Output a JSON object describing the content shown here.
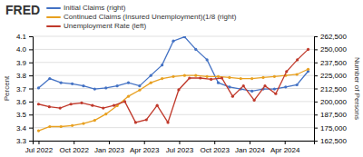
{
  "chart_data": {
    "type": "line",
    "title": "FRED",
    "y_label": "Percent",
    "y2_label": "Number of Persons",
    "grid": true,
    "legend": "top-left",
    "marker": "circle",
    "xlim": [
      -0.5,
      23.5
    ],
    "xticks": [
      {
        "value": 0,
        "label": "Jul 2022"
      },
      {
        "value": 3,
        "label": "Oct 2022"
      },
      {
        "value": 6,
        "label": "Jan 2023"
      },
      {
        "value": 9,
        "label": "Apr 2023"
      },
      {
        "value": 12,
        "label": "Jul 2023"
      },
      {
        "value": 15,
        "label": "Oct 2023"
      },
      {
        "value": 18,
        "label": "Jan 2024"
      },
      {
        "value": 21,
        "label": "Apr 2024"
      }
    ],
    "ylim": [
      3.3,
      4.1
    ],
    "yticks": [
      3.3,
      3.4,
      3.5,
      3.6,
      3.7,
      3.8,
      3.9,
      {
        "value": 4.0,
        "label": "4.0"
      },
      4.1
    ],
    "y2lim": [
      162500,
      262500
    ],
    "y2ticks": [
      {
        "value": 162500,
        "label": "162,500"
      },
      {
        "value": 175000,
        "label": "175,000"
      },
      {
        "value": 187500,
        "label": "187,500"
      },
      {
        "value": 200000,
        "label": "200,000"
      },
      {
        "value": 212500,
        "label": "212,500"
      },
      {
        "value": 225000,
        "label": "225,000"
      },
      {
        "value": 237500,
        "label": "237,500"
      },
      {
        "value": 250000,
        "label": "250,000"
      },
      {
        "value": 262500,
        "label": "262,500"
      }
    ],
    "series": [
      {
        "name": "Initial Claims (right)",
        "color": "#4472c4",
        "axis": "y2",
        "x": [
          0,
          0.9583333333333334,
          1.9166666666666667,
          2.875,
          3.8333333333333335,
          4.791666666666667,
          5.75,
          6.708333333333333,
          7.666666666666667,
          8.625,
          9.583333333333334,
          10.541666666666666,
          11.5,
          12.458333333333334,
          13.416666666666666,
          14.375,
          15.333333333333334,
          16.291666666666668,
          17.25,
          18.208333333333332,
          19.166666666666668,
          20.125,
          21.083333333333332,
          22.041666666666668,
          23
        ],
        "values": [
          213000,
          222000,
          218000,
          217000,
          215000,
          212000,
          213000,
          215000,
          218000,
          215000,
          225000,
          235000,
          258000,
          262000,
          250000,
          240000,
          218000,
          214000,
          212000,
          210000,
          212000,
          212000,
          214000,
          216000,
          229000
        ]
      },
      {
        "name": "Continued Claims (Insured Unemployment)(1/8 (right)",
        "color": "#e8a020",
        "axis": "y2",
        "x": [
          0,
          0.9583333333333334,
          1.9166666666666667,
          2.875,
          3.8333333333333335,
          4.791666666666667,
          5.75,
          6.708333333333333,
          7.666666666666667,
          8.625,
          9.583333333333334,
          10.541666666666666,
          11.5,
          12.458333333333334,
          13.416666666666666,
          14.375,
          15.333333333333334,
          16.291666666666668,
          17.25,
          18.208333333333332,
          19.166666666666668,
          20.125,
          21.083333333333332,
          22.041666666666668,
          23
        ],
        "values": [
          172000,
          176000,
          176000,
          177000,
          179000,
          182000,
          188000,
          196000,
          205000,
          211000,
          218000,
          222000,
          224000,
          225000,
          225000,
          224000,
          224000,
          223000,
          222000,
          222000,
          223000,
          224000,
          225000,
          226000,
          231000
        ]
      },
      {
        "name": "Unemployment Rate (left)",
        "color": "#c0392b",
        "axis": "y",
        "x": [
          0,
          0.92,
          1.84,
          2.76,
          3.68,
          4.6,
          5.52,
          6.44,
          7.36,
          8.28,
          9.2,
          10.12,
          11.04,
          11.96,
          12.88,
          13.8,
          14.72,
          15.64,
          16.56,
          17.48,
          18.4,
          19.32,
          20.24,
          21.16,
          22.08,
          23
        ],
        "values": [
          3.58,
          3.56,
          3.55,
          3.58,
          3.59,
          3.57,
          3.55,
          3.57,
          3.6,
          3.44,
          3.46,
          3.57,
          3.44,
          3.69,
          3.78,
          3.78,
          3.77,
          3.78,
          3.64,
          3.72,
          3.61,
          3.72,
          3.66,
          3.83,
          3.92,
          4.0
        ]
      }
    ]
  }
}
